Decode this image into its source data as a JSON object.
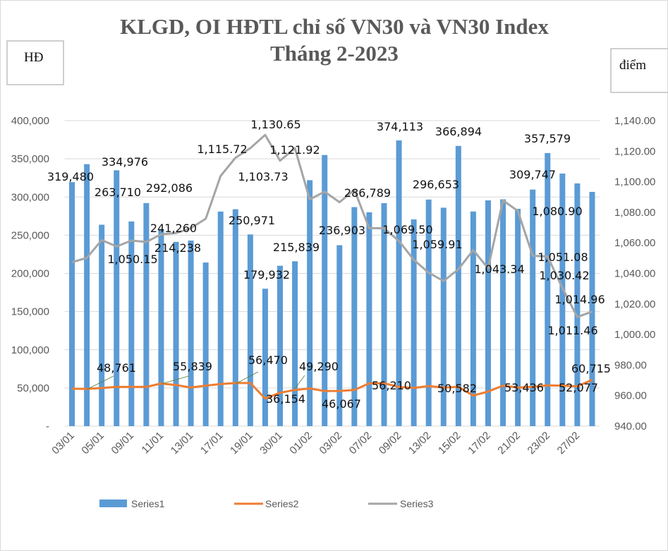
{
  "chart_data": {
    "type": "bar+line",
    "title": [
      "KLGD, OI HĐTL chỉ số VN30 và VN30 Index",
      "Tháng 2-2023"
    ],
    "ylabel_left": "HĐ",
    "ylabel_right": "điểm",
    "ylim_left": [
      0,
      400000
    ],
    "ylim_right": [
      940,
      1140
    ],
    "yticks_left": [
      "-",
      "50,000",
      "100,000",
      "150,000",
      "200,000",
      "250,000",
      "300,000",
      "350,000",
      "400,000"
    ],
    "yticks_right": [
      "940.00",
      "960.00",
      "980.00",
      "1,000.00",
      "1,020.00",
      "1,040.00",
      "1,060.00",
      "1,080.00",
      "1,100.00",
      "1,120.00",
      "1,140.00"
    ],
    "categories": [
      "03/01",
      "",
      "05/01",
      "",
      "09/01",
      "",
      "11/01",
      "",
      "13/01",
      "",
      "17/01",
      "",
      "19/01",
      "",
      "30/01",
      "",
      "01/02",
      "",
      "03/02",
      "",
      "07/02",
      "",
      "09/02",
      "",
      "13/02",
      "",
      "15/02",
      "",
      "17/02",
      "",
      "21/02",
      "",
      "23/02",
      "",
      "27/02",
      ""
    ],
    "grid": true,
    "legend_position": "bottom",
    "series": [
      {
        "name": "Series1",
        "type": "bar",
        "axis": "left",
        "color": "#5b9bd5",
        "values": [
          319480,
          343000,
          263710,
          334976,
          268000,
          292086,
          257700,
          241260,
          243000,
          214238,
          281000,
          284000,
          250971,
          179932,
          210000,
          215839,
          322000,
          355000,
          236903,
          286789,
          280000,
          292000,
          374113,
          270700,
          296653,
          286000,
          366894,
          281000,
          295600,
          297000,
          284500,
          309747,
          357579,
          330700,
          317800,
          306700
        ]
      },
      {
        "name": "Series2",
        "type": "line",
        "axis": "left",
        "color": "#ed7d31",
        "values": [
          49000,
          48761,
          49900,
          51400,
          51400,
          51400,
          55839,
          53900,
          50500,
          53000,
          55100,
          56400,
          56470,
          36154,
          43700,
          47400,
          49290,
          45900,
          46067,
          47400,
          56000,
          56210,
          51400,
          50000,
          52400,
          50500,
          51400,
          40000,
          45300,
          53000,
          50582,
          51400,
          53436,
          53000,
          52077,
          60715
        ]
      },
      {
        "name": "Series3",
        "type": "line",
        "axis": "right",
        "color": "#a5a5a5",
        "values": [
          1047.3,
          1050.15,
          1061.8,
          1057.6,
          1061.5,
          1060.6,
          1065.6,
          1066.4,
          1069.6,
          1075.8,
          1103.73,
          1115.72,
          1122.0,
          1130.65,
          1113.8,
          1121.92,
          1088.4,
          1093.5,
          1086.6,
          1094.7,
          1069.6,
          1069.5,
          1061.2,
          1048.9,
          1040.4,
          1035.0,
          1042.7,
          1055.3,
          1043.34,
          1087.8,
          1080.9,
          1051.5,
          1051.08,
          1030.42,
          1011.46,
          1014.96
        ]
      }
    ],
    "data_labels": [
      {
        "series": "Series1",
        "text": "319,480"
      },
      {
        "series": "Series1",
        "text": "334,976"
      },
      {
        "series": "Series1",
        "text": "263,710"
      },
      {
        "series": "Series1",
        "text": "292,086"
      },
      {
        "series": "Series1",
        "text": "241,260"
      },
      {
        "series": "Series1",
        "text": "214,238"
      },
      {
        "series": "Series1",
        "text": "250,971"
      },
      {
        "series": "Series1",
        "text": "179,932"
      },
      {
        "series": "Series1",
        "text": "215,839"
      },
      {
        "series": "Series1",
        "text": "236,903"
      },
      {
        "series": "Series1",
        "text": "286,789"
      },
      {
        "series": "Series1",
        "text": "374,113"
      },
      {
        "series": "Series1",
        "text": "296,653"
      },
      {
        "series": "Series1",
        "text": "366,894"
      },
      {
        "series": "Series1",
        "text": "309,747"
      },
      {
        "series": "Series1",
        "text": "357,579"
      },
      {
        "series": "Series3",
        "text": "1,050.15"
      },
      {
        "series": "Series3",
        "text": "1,115.72"
      },
      {
        "series": "Series3",
        "text": "1,130.65"
      },
      {
        "series": "Series3",
        "text": "1,103.73"
      },
      {
        "series": "Series3",
        "text": "1,121.92"
      },
      {
        "series": "Series3",
        "text": "1,069.50"
      },
      {
        "series": "Series3",
        "text": "1,059.91"
      },
      {
        "series": "Series3",
        "text": "1,043.34"
      },
      {
        "series": "Series3",
        "text": "1,080.90"
      },
      {
        "series": "Series3",
        "text": "1,051.08"
      },
      {
        "series": "Series3",
        "text": "1,030.42"
      },
      {
        "series": "Series3",
        "text": "1,014.96"
      },
      {
        "series": "Series3",
        "text": "1,011.46"
      },
      {
        "series": "Series2",
        "text": "48,761"
      },
      {
        "series": "Series2",
        "text": "55,839"
      },
      {
        "series": "Series2",
        "text": "56,470"
      },
      {
        "series": "Series2",
        "text": "49,290"
      },
      {
        "series": "Series2",
        "text": "36,154"
      },
      {
        "series": "Series2",
        "text": "46,067"
      },
      {
        "series": "Series2",
        "text": "56,210"
      },
      {
        "series": "Series2",
        "text": "50,582"
      },
      {
        "series": "Series2",
        "text": "53,436"
      },
      {
        "series": "Series2",
        "text": "52,077"
      },
      {
        "series": "Series2",
        "text": "60,715"
      }
    ]
  }
}
